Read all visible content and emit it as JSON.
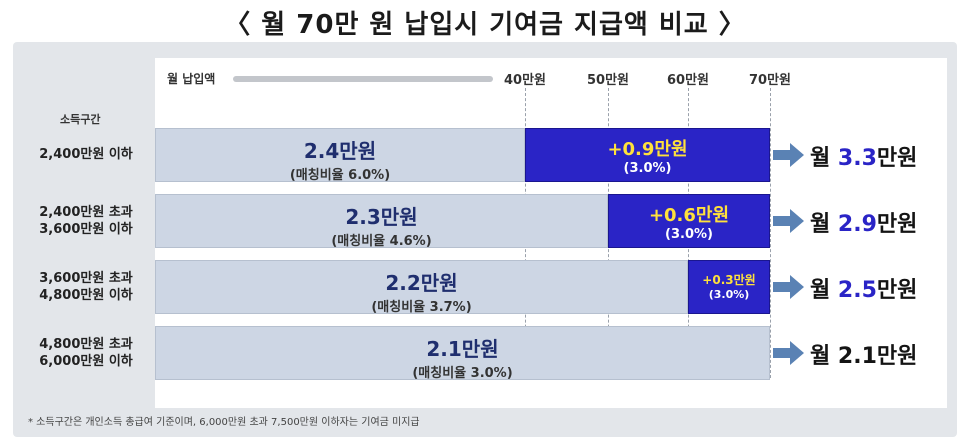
{
  "title": "〈 월 70만 원 납입시 기여금 지급액 비교 〉",
  "axis": {
    "label": "월 납입액",
    "ticks": [
      "40만원",
      "50만원",
      "60만원",
      "70만원"
    ]
  },
  "row_header": "소득구간",
  "rows": [
    {
      "label_line1": "2,400만원 이하",
      "label_line2": "",
      "base": "2.4만원",
      "base_rate": "(매칭비율 6.0%)",
      "match": "+0.9만원",
      "match_rate": "(3.0%)",
      "result_prefix": "월 ",
      "result_num": "3.3",
      "result_unit": "만원"
    },
    {
      "label_line1": "2,400만원 초과",
      "label_line2": "3,600만원 이하",
      "base": "2.3만원",
      "base_rate": "(매칭비율 4.6%)",
      "match": "+0.6만원",
      "match_rate": "(3.0%)",
      "result_prefix": "월 ",
      "result_num": "2.9",
      "result_unit": "만원"
    },
    {
      "label_line1": "3,600만원 초과",
      "label_line2": "4,800만원 이하",
      "base": "2.2만원",
      "base_rate": "(매칭비율 3.7%)",
      "match": "+0.3만원",
      "match_rate": "(3.0%)",
      "result_prefix": "월 ",
      "result_num": "2.5",
      "result_unit": "만원"
    },
    {
      "label_line1": "4,800만원 초과",
      "label_line2": "6,000만원 이하",
      "base": "2.1만원",
      "base_rate": "(매칭비율 3.0%)",
      "match": "",
      "match_rate": "",
      "result_prefix": "월 ",
      "result_num": "",
      "result_unit": "2.1만원"
    }
  ],
  "footnote": "* 소득구간은 개인소득 총급여 기준이며, 6,000만원 초과 7,500만원 이하자는 기여금 미지급",
  "colors": {
    "accent": "#2a24c6",
    "highlight": "#ffe13b",
    "bar": "#cdd6e4"
  },
  "chart_data": {
    "type": "bar",
    "stacked": true,
    "orientation": "horizontal",
    "x_axis_label": "월 납입액",
    "x_ticks": [
      40,
      50,
      60,
      70
    ],
    "x_tick_labels": [
      "40만원",
      "50만원",
      "60만원",
      "70만원"
    ],
    "xlim": [
      0,
      70
    ],
    "categories": [
      "2,400만원 이하",
      "2,400만원 초과 3,600만원 이하",
      "3,600만원 초과 4,800만원 이하",
      "4,800만원 초과 6,000만원 이하"
    ],
    "segment_boundaries": [
      40,
      50,
      60,
      70
    ],
    "series": [
      {
        "values": [
          2.4,
          2.3,
          2.2,
          2.1
        ],
        "rates": [
          6.0,
          4.6,
          3.7,
          3.0
        ]
      },
      {
        "values": [
          0.9,
          0.6,
          0.3,
          0
        ],
        "rates": [
          3.0,
          3.0,
          3.0,
          0
        ]
      }
    ],
    "totals": [
      3.3,
      2.9,
      2.5,
      2.1
    ]
  }
}
